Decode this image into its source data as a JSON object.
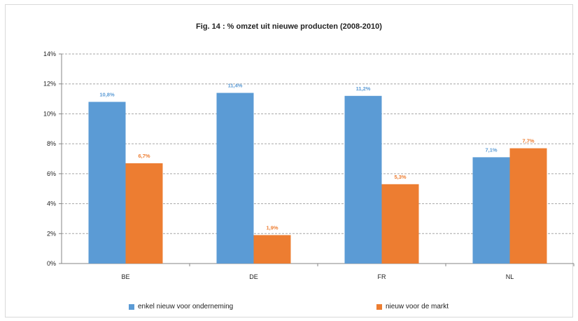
{
  "chart_data": {
    "type": "bar",
    "title": "Fig. 14 : % omzet uit nieuwe producten (2008-2010)",
    "categories": [
      "BE",
      "DE",
      "FR",
      "NL"
    ],
    "series": [
      {
        "name": "enkel nieuw voor onderneming",
        "values": [
          10.8,
          11.4,
          11.2,
          7.1
        ],
        "labels": [
          "10,8%",
          "11,4%",
          "11,2%",
          "7,1%"
        ],
        "color": "#5b9bd5",
        "label_color": "#5b9bd5"
      },
      {
        "name": "nieuw voor de markt",
        "values": [
          6.7,
          1.9,
          5.3,
          7.7
        ],
        "labels": [
          "6,7%",
          "1,9%",
          "5,3%",
          "7,7%"
        ],
        "color": "#ed7d31",
        "label_color": "#ed7d31"
      }
    ],
    "ylim": [
      0,
      14
    ],
    "yticks": [
      0,
      2,
      4,
      6,
      8,
      10,
      12,
      14
    ],
    "ytick_labels": [
      "0%",
      "2%",
      "4%",
      "6%",
      "8%",
      "10%",
      "12%",
      "14%"
    ],
    "grid": true,
    "legend": "bottom"
  }
}
